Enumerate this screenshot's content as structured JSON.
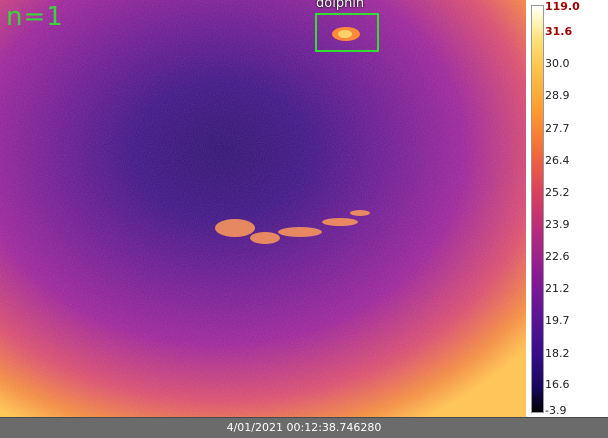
{
  "overlay": {
    "count_text": "n=1",
    "detection_label": "dolphin"
  },
  "colorbar": {
    "max_value": "119.0",
    "upper_value": "31.6",
    "ticks": [
      "30.0",
      "28.9",
      "27.7",
      "26.4",
      "25.2",
      "23.9",
      "22.6",
      "21.2",
      "19.7",
      "18.2",
      "16.6"
    ],
    "min_value": "-3.9"
  },
  "status": {
    "timestamp": "4/01/2021 00:12:38.746280"
  },
  "colors": {
    "detection_box": "#33dd33",
    "count_text": "#3ad43a",
    "hot_label": "#a00000"
  }
}
